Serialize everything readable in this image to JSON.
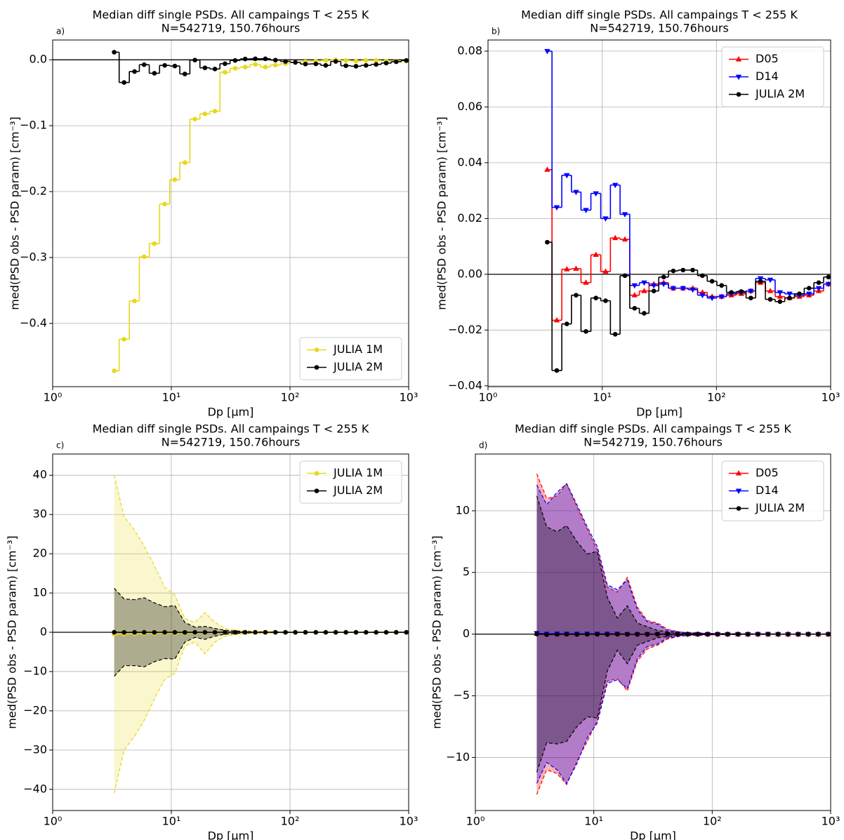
{
  "chart_data": [
    {
      "type": "step",
      "panel_label": "a)",
      "title": "Median diff single PSDs. All campaings T < 255 K",
      "subtitle": "N=542719, 150.76hours",
      "x_label": "Dp [μm]",
      "y_label": "med(PSD obs - PSD param) [cm⁻³]",
      "xscale": "log",
      "grid": true,
      "legend": "lower right",
      "hline": 0,
      "xlim": [
        1,
        1000
      ],
      "xticks": [
        {
          "value": 1,
          "label": "10⁰"
        },
        {
          "value": 10,
          "label": "10¹"
        },
        {
          "value": 100,
          "label": "10²"
        },
        {
          "value": 1000,
          "label": "10³"
        }
      ],
      "ylim": [
        -0.496,
        0.03
      ],
      "yticks": [
        {
          "value": 0,
          "label": "0.0"
        },
        {
          "value": -0.1,
          "label": "−0.1"
        },
        {
          "value": -0.2,
          "label": "−0.2"
        },
        {
          "value": -0.3,
          "label": "−0.3"
        },
        {
          "value": -0.4,
          "label": "−0.4"
        }
      ],
      "x": [
        3.3,
        4.0,
        4.9,
        5.9,
        7.2,
        8.8,
        10.7,
        13.0,
        15.8,
        19.2,
        23.3,
        28.3,
        34.5,
        41.9,
        51.0,
        62.0,
        75.4,
        91.6,
        111,
        135,
        165,
        200,
        243,
        296,
        360,
        437,
        532,
        647,
        786,
        956
      ],
      "series": [
        {
          "name": "JULIA 1M",
          "color": "#e8d81c",
          "marker": "circle",
          "values": [
            -0.472,
            -0.424,
            -0.366,
            -0.299,
            -0.279,
            -0.219,
            -0.182,
            -0.156,
            -0.09,
            -0.082,
            -0.078,
            -0.019,
            -0.013,
            -0.011,
            -0.007,
            -0.011,
            -0.008,
            -0.006,
            -0.004,
            -0.003,
            -0.002,
            -0.001,
            0.0,
            -0.001,
            -0.002,
            -0.001,
            -0.001,
            -0.002,
            -0.002,
            -0.002
          ]
        },
        {
          "name": "JULIA 2M",
          "color": "#000000",
          "marker": "circle",
          "values": [
            0.0115,
            -0.0345,
            -0.0178,
            -0.0075,
            -0.0205,
            -0.0085,
            -0.0095,
            -0.0215,
            -0.0005,
            -0.0122,
            -0.014,
            -0.006,
            -0.001,
            0.0012,
            0.0015,
            0.0015,
            -0.0005,
            -0.0025,
            -0.004,
            -0.0065,
            -0.0062,
            -0.0085,
            -0.0025,
            -0.009,
            -0.0098,
            -0.0085,
            -0.007,
            -0.005,
            -0.003,
            -0.001
          ]
        }
      ]
    },
    {
      "type": "step",
      "panel_label": "b)",
      "title": "Median diff single PSDs. All campaings T < 255 K",
      "subtitle": "N=542719, 150.76hours",
      "x_label": "Dp [μm]",
      "y_label": "med(PSD obs - PSD param) [cm⁻³]",
      "xscale": "log",
      "grid": true,
      "legend": "upper right",
      "hline": 0,
      "xlim": [
        1,
        1000
      ],
      "xticks": [
        {
          "value": 1,
          "label": "10⁰"
        },
        {
          "value": 10,
          "label": "10¹"
        },
        {
          "value": 100,
          "label": "10²"
        },
        {
          "value": 1000,
          "label": "10³"
        }
      ],
      "ylim": [
        -0.0403,
        0.084
      ],
      "yticks": [
        0.08,
        0.06,
        0.04,
        0.02,
        {
          "value": 0,
          "label": "0.00"
        },
        {
          "value": -0.02,
          "label": "−0.02"
        },
        {
          "value": -0.04,
          "label": "−0.04"
        }
      ],
      "x": [
        3.3,
        4.0,
        4.9,
        5.9,
        7.2,
        8.8,
        10.7,
        13.0,
        15.8,
        19.2,
        23.3,
        28.3,
        34.5,
        41.9,
        51.0,
        62.0,
        75.4,
        91.6,
        111,
        135,
        165,
        200,
        243,
        296,
        360,
        437,
        532,
        647,
        786,
        956
      ],
      "series": [
        {
          "name": "D05",
          "color": "#ff0000",
          "marker": "triangle-up",
          "values": [
            0.0375,
            -0.0165,
            0.0018,
            0.002,
            -0.003,
            0.007,
            0.001,
            0.013,
            0.0125,
            -0.0075,
            -0.006,
            -0.0035,
            -0.003,
            -0.005,
            -0.005,
            -0.005,
            -0.0065,
            -0.008,
            -0.008,
            -0.0075,
            -0.007,
            -0.006,
            -0.003,
            -0.006,
            -0.008,
            -0.0085,
            -0.008,
            -0.0075,
            -0.006,
            -0.0035
          ]
        },
        {
          "name": "D14",
          "color": "#0000ff",
          "marker": "triangle-down",
          "values": [
            0.08,
            0.024,
            0.0355,
            0.0295,
            0.023,
            0.029,
            0.02,
            0.032,
            0.0215,
            -0.004,
            -0.003,
            -0.004,
            -0.0035,
            -0.005,
            -0.005,
            -0.0055,
            -0.0075,
            -0.0085,
            -0.008,
            -0.007,
            -0.0065,
            -0.006,
            -0.0015,
            -0.002,
            -0.0065,
            -0.007,
            -0.0075,
            -0.007,
            -0.005,
            -0.0035
          ]
        },
        {
          "name": "JULIA 2M",
          "color": "#000000",
          "marker": "circle",
          "values": [
            0.0115,
            -0.0345,
            -0.0178,
            -0.0075,
            -0.0205,
            -0.0085,
            -0.0095,
            -0.0215,
            -0.0005,
            -0.0122,
            -0.014,
            -0.006,
            -0.001,
            0.0012,
            0.0015,
            0.0015,
            -0.0005,
            -0.0025,
            -0.004,
            -0.0065,
            -0.0062,
            -0.0085,
            -0.0025,
            -0.009,
            -0.0098,
            -0.0085,
            -0.007,
            -0.005,
            -0.003,
            -0.001
          ]
        }
      ]
    },
    {
      "type": "band",
      "panel_label": "c)",
      "title": "Median diff single PSDs. All campaings T < 255 K",
      "subtitle": "N=542719, 150.76hours",
      "x_label": "Dp [μm]",
      "y_label": "med(PSD obs - PSD param) [cm⁻³]",
      "xscale": "log",
      "grid": true,
      "legend": "upper right",
      "hline": 0,
      "xlim": [
        1,
        1000
      ],
      "xticks": [
        {
          "value": 1,
          "label": "10⁰"
        },
        {
          "value": 10,
          "label": "10¹"
        },
        {
          "value": 100,
          "label": "10²"
        },
        {
          "value": 1000,
          "label": "10³"
        }
      ],
      "ylim": [
        -45.4,
        45.4
      ],
      "yticks": [
        40,
        30,
        20,
        10,
        0,
        {
          "value": -10,
          "label": "−10"
        },
        {
          "value": -20,
          "label": "−20"
        },
        {
          "value": -30,
          "label": "−30"
        },
        {
          "value": -40,
          "label": "−40"
        }
      ],
      "x": [
        3.3,
        4.0,
        4.9,
        5.9,
        7.2,
        8.8,
        10.7,
        13.0,
        15.8,
        19.2,
        23.3,
        28.3,
        34.5,
        41.9,
        51.0,
        62.0,
        75.4,
        91.6,
        111,
        135,
        165,
        200,
        243,
        296,
        360,
        437,
        532,
        647,
        786,
        956
      ],
      "series": [
        {
          "name": "JULIA 1M",
          "color": "#e8d81c",
          "marker": "circle",
          "values": [
            -0.472,
            -0.424,
            -0.366,
            -0.299,
            -0.279,
            -0.219,
            -0.182,
            -0.156,
            -0.09,
            -0.082,
            -0.078,
            -0.019,
            -0.013,
            -0.011,
            -0.007,
            -0.011,
            -0.008,
            -0.006,
            -0.004,
            -0.003,
            -0.002,
            -0.001,
            0.0,
            -0.001,
            -0.002,
            -0.001,
            -0.001,
            -0.002,
            -0.002,
            -0.002
          ],
          "upper": [
            40,
            29.5,
            26,
            22,
            17,
            11.5,
            9.5,
            3.5,
            2.5,
            5,
            2.5,
            1,
            0.6,
            0.4,
            0.3,
            0.2,
            0.15,
            0.1,
            0.1,
            0.05,
            0.05,
            0.03,
            0.03,
            0.02,
            0.02,
            0.01,
            0.01,
            0.01,
            0.01,
            0.01
          ],
          "lower": [
            -41,
            -30,
            -26.5,
            -22.5,
            -17,
            -12,
            -10.5,
            -3.5,
            -2.5,
            -5.5,
            -2.5,
            -1,
            -0.6,
            -0.4,
            -0.3,
            -0.2,
            -0.15,
            -0.1,
            -0.1,
            -0.05,
            -0.05,
            -0.03,
            -0.03,
            -0.02,
            -0.02,
            -0.01,
            -0.01,
            -0.01,
            -0.01,
            -0.01
          ]
        },
        {
          "name": "JULIA 2M",
          "color": "#000000",
          "marker": "circle",
          "values": [
            0.0115,
            -0.0345,
            -0.0178,
            -0.0075,
            -0.0205,
            -0.0085,
            -0.0095,
            -0.0215,
            -0.0005,
            -0.0122,
            -0.014,
            -0.006,
            -0.001,
            0.0012,
            0.0015,
            0.0015,
            -0.0005,
            -0.0025,
            -0.004,
            -0.0065,
            -0.0062,
            -0.0085,
            -0.0025,
            -0.009,
            -0.0098,
            -0.0085,
            -0.007,
            -0.005,
            -0.003,
            -0.001
          ],
          "upper": [
            11.2,
            8.5,
            8.3,
            8.8,
            7.5,
            6.5,
            6.8,
            2.5,
            1.3,
            1.5,
            1.0,
            0.5,
            0.3,
            0.2,
            0.1,
            0.1,
            0.05,
            0.05,
            0.03,
            0.03,
            0.02,
            0.02,
            0.01,
            0.01,
            0.01,
            0.01,
            0.01,
            0.01,
            0.01,
            0.01
          ],
          "lower": [
            -11.2,
            -8.5,
            -8.5,
            -8.8,
            -7.5,
            -6.7,
            -6.8,
            -2.5,
            -1.3,
            -1.8,
            -1.0,
            -0.5,
            -0.3,
            -0.2,
            -0.1,
            -0.1,
            -0.05,
            -0.05,
            -0.03,
            -0.03,
            -0.02,
            -0.02,
            -0.01,
            -0.01,
            -0.01,
            -0.01,
            -0.01,
            -0.01,
            -0.01,
            -0.01
          ]
        }
      ]
    },
    {
      "type": "band",
      "panel_label": "d)",
      "title": "Median diff single PSDs. All campaings T < 255 K",
      "subtitle": "N=542719, 150.76hours",
      "x_label": "Dp [μm]",
      "y_label": "med(PSD obs - PSD param) [cm⁻³]",
      "xscale": "log",
      "grid": true,
      "legend": "upper right",
      "hline": 0,
      "xlim": [
        1,
        1000
      ],
      "xticks": [
        {
          "value": 1,
          "label": "10⁰"
        },
        {
          "value": 10,
          "label": "10¹"
        },
        {
          "value": 100,
          "label": "10²"
        },
        {
          "value": 1000,
          "label": "10³"
        }
      ],
      "ylim": [
        -14.3,
        14.6
      ],
      "yticks": [
        10,
        5,
        0,
        {
          "value": -5,
          "label": "−5"
        },
        {
          "value": -10,
          "label": "−10"
        }
      ],
      "x": [
        3.3,
        4.0,
        4.9,
        5.9,
        7.2,
        8.8,
        10.7,
        13.0,
        15.8,
        19.2,
        23.3,
        28.3,
        34.5,
        41.9,
        51.0,
        62.0,
        75.4,
        91.6,
        111,
        135,
        165,
        200,
        243,
        296,
        360,
        437,
        532,
        647,
        786,
        956
      ],
      "series": [
        {
          "name": "D05",
          "color": "#ff0000",
          "marker": "triangle-up",
          "values": [
            0.0375,
            -0.0165,
            0.0018,
            0.002,
            -0.003,
            0.007,
            0.001,
            0.013,
            0.0125,
            -0.0075,
            -0.006,
            -0.0035,
            -0.003,
            -0.005,
            -0.005,
            -0.005,
            -0.0065,
            -0.008,
            -0.008,
            -0.0075,
            -0.007,
            -0.006,
            -0.003,
            -0.006,
            -0.008,
            -0.0085,
            -0.008,
            -0.0075,
            -0.006,
            -0.0035
          ],
          "upper": [
            13,
            11,
            11.2,
            12.2,
            10.3,
            8.5,
            6.8,
            3.8,
            3.4,
            4.6,
            2.2,
            1.1,
            0.9,
            0.4,
            0.2,
            0.1,
            0.1,
            0.05,
            0.05,
            0.03,
            0.03,
            0.02,
            0.02,
            0.02,
            0.01,
            0.01,
            0.01,
            0.01,
            0.01,
            0.01
          ],
          "lower": [
            -13,
            -11,
            -11.3,
            -12.2,
            -10.3,
            -8.7,
            -7,
            -3.8,
            -3.6,
            -4.6,
            -2.2,
            -1.2,
            -0.9,
            -0.4,
            -0.2,
            -0.1,
            -0.1,
            -0.05,
            -0.05,
            -0.03,
            -0.03,
            -0.02,
            -0.02,
            -0.02,
            -0.01,
            -0.01,
            -0.01,
            -0.01,
            -0.01,
            -0.01
          ]
        },
        {
          "name": "D14",
          "color": "#0000ff",
          "marker": "triangle-down",
          "values": [
            0.08,
            0.024,
            0.0355,
            0.0295,
            0.023,
            0.029,
            0.02,
            0.032,
            0.0215,
            -0.004,
            -0.003,
            -0.004,
            -0.0035,
            -0.005,
            -0.005,
            -0.0055,
            -0.0075,
            -0.0085,
            -0.008,
            -0.007,
            -0.0065,
            -0.006,
            -0.0015,
            -0.002,
            -0.0065,
            -0.007,
            -0.0075,
            -0.007,
            -0.005,
            -0.0035
          ],
          "upper": [
            12.1,
            10.5,
            11.5,
            12.2,
            10.5,
            8.7,
            7.1,
            4.0,
            3.6,
            4.4,
            2.0,
            1.0,
            0.8,
            0.3,
            0.2,
            0.1,
            0.1,
            0.05,
            0.05,
            0.03,
            0.03,
            0.02,
            0.02,
            0.02,
            0.01,
            0.01,
            0.01,
            0.01,
            0.01,
            0.01
          ],
          "lower": [
            -12.1,
            -10.4,
            -11,
            -12.1,
            -10.5,
            -8.4,
            -7.2,
            -4,
            -3.7,
            -4.4,
            -2,
            -1,
            -0.8,
            -0.3,
            -0.2,
            -0.1,
            -0.1,
            -0.05,
            -0.05,
            -0.03,
            -0.03,
            -0.02,
            -0.02,
            -0.02,
            -0.01,
            -0.01,
            -0.01,
            -0.01,
            -0.01,
            -0.01
          ]
        },
        {
          "name": "JULIA 2M",
          "color": "#000000",
          "marker": "circle",
          "values": [
            0.0115,
            -0.0345,
            -0.0178,
            -0.0075,
            -0.0205,
            -0.0085,
            -0.0095,
            -0.0215,
            -0.0005,
            -0.0122,
            -0.014,
            -0.006,
            -0.001,
            0.0012,
            0.0015,
            0.0015,
            -0.0005,
            -0.0025,
            -0.004,
            -0.0065,
            -0.0062,
            -0.0085,
            -0.0025,
            -0.009,
            -0.0098,
            -0.0085,
            -0.007,
            -0.005,
            -0.003,
            -0.001
          ],
          "upper": [
            11.2,
            8.7,
            8.3,
            8.8,
            7.5,
            6.5,
            6.7,
            3,
            1.3,
            2.3,
            0.9,
            0.6,
            0.3,
            0.2,
            0.1,
            0.05,
            0.05,
            0.03,
            0.03,
            0.02,
            0.02,
            0.01,
            0.01,
            0.01,
            0.01,
            0.01,
            0.01,
            0.01,
            0.01,
            0.01
          ],
          "lower": [
            -11.2,
            -8.8,
            -8.9,
            -8.7,
            -7.5,
            -6.7,
            -6.8,
            -3,
            -1.3,
            -2.4,
            -0.9,
            -0.6,
            -0.3,
            -0.2,
            -0.1,
            -0.05,
            -0.05,
            -0.03,
            -0.03,
            -0.02,
            -0.02,
            -0.01,
            -0.01,
            -0.01,
            -0.01,
            -0.01,
            -0.01,
            -0.01,
            -0.01,
            -0.01
          ]
        }
      ]
    }
  ]
}
